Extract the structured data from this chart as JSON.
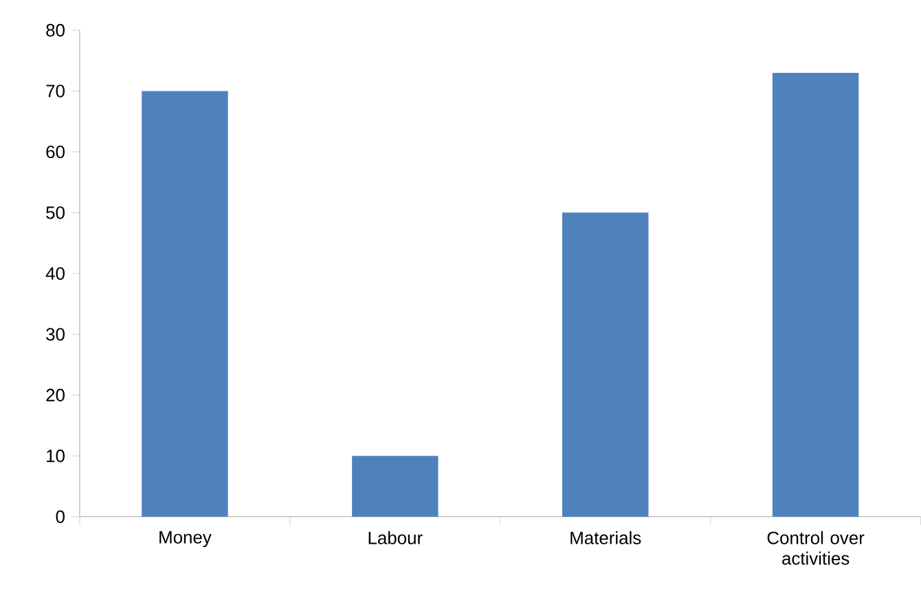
{
  "chart_data": {
    "type": "bar",
    "categories": [
      "Money",
      "Labour",
      "Materials",
      "Control over activities"
    ],
    "values": [
      70,
      10,
      50,
      73
    ],
    "color": "#4f81bd",
    "ylim": [
      0,
      80
    ],
    "yticks": [
      0,
      10,
      20,
      30,
      40,
      50,
      60,
      70,
      80
    ],
    "grid": false
  }
}
